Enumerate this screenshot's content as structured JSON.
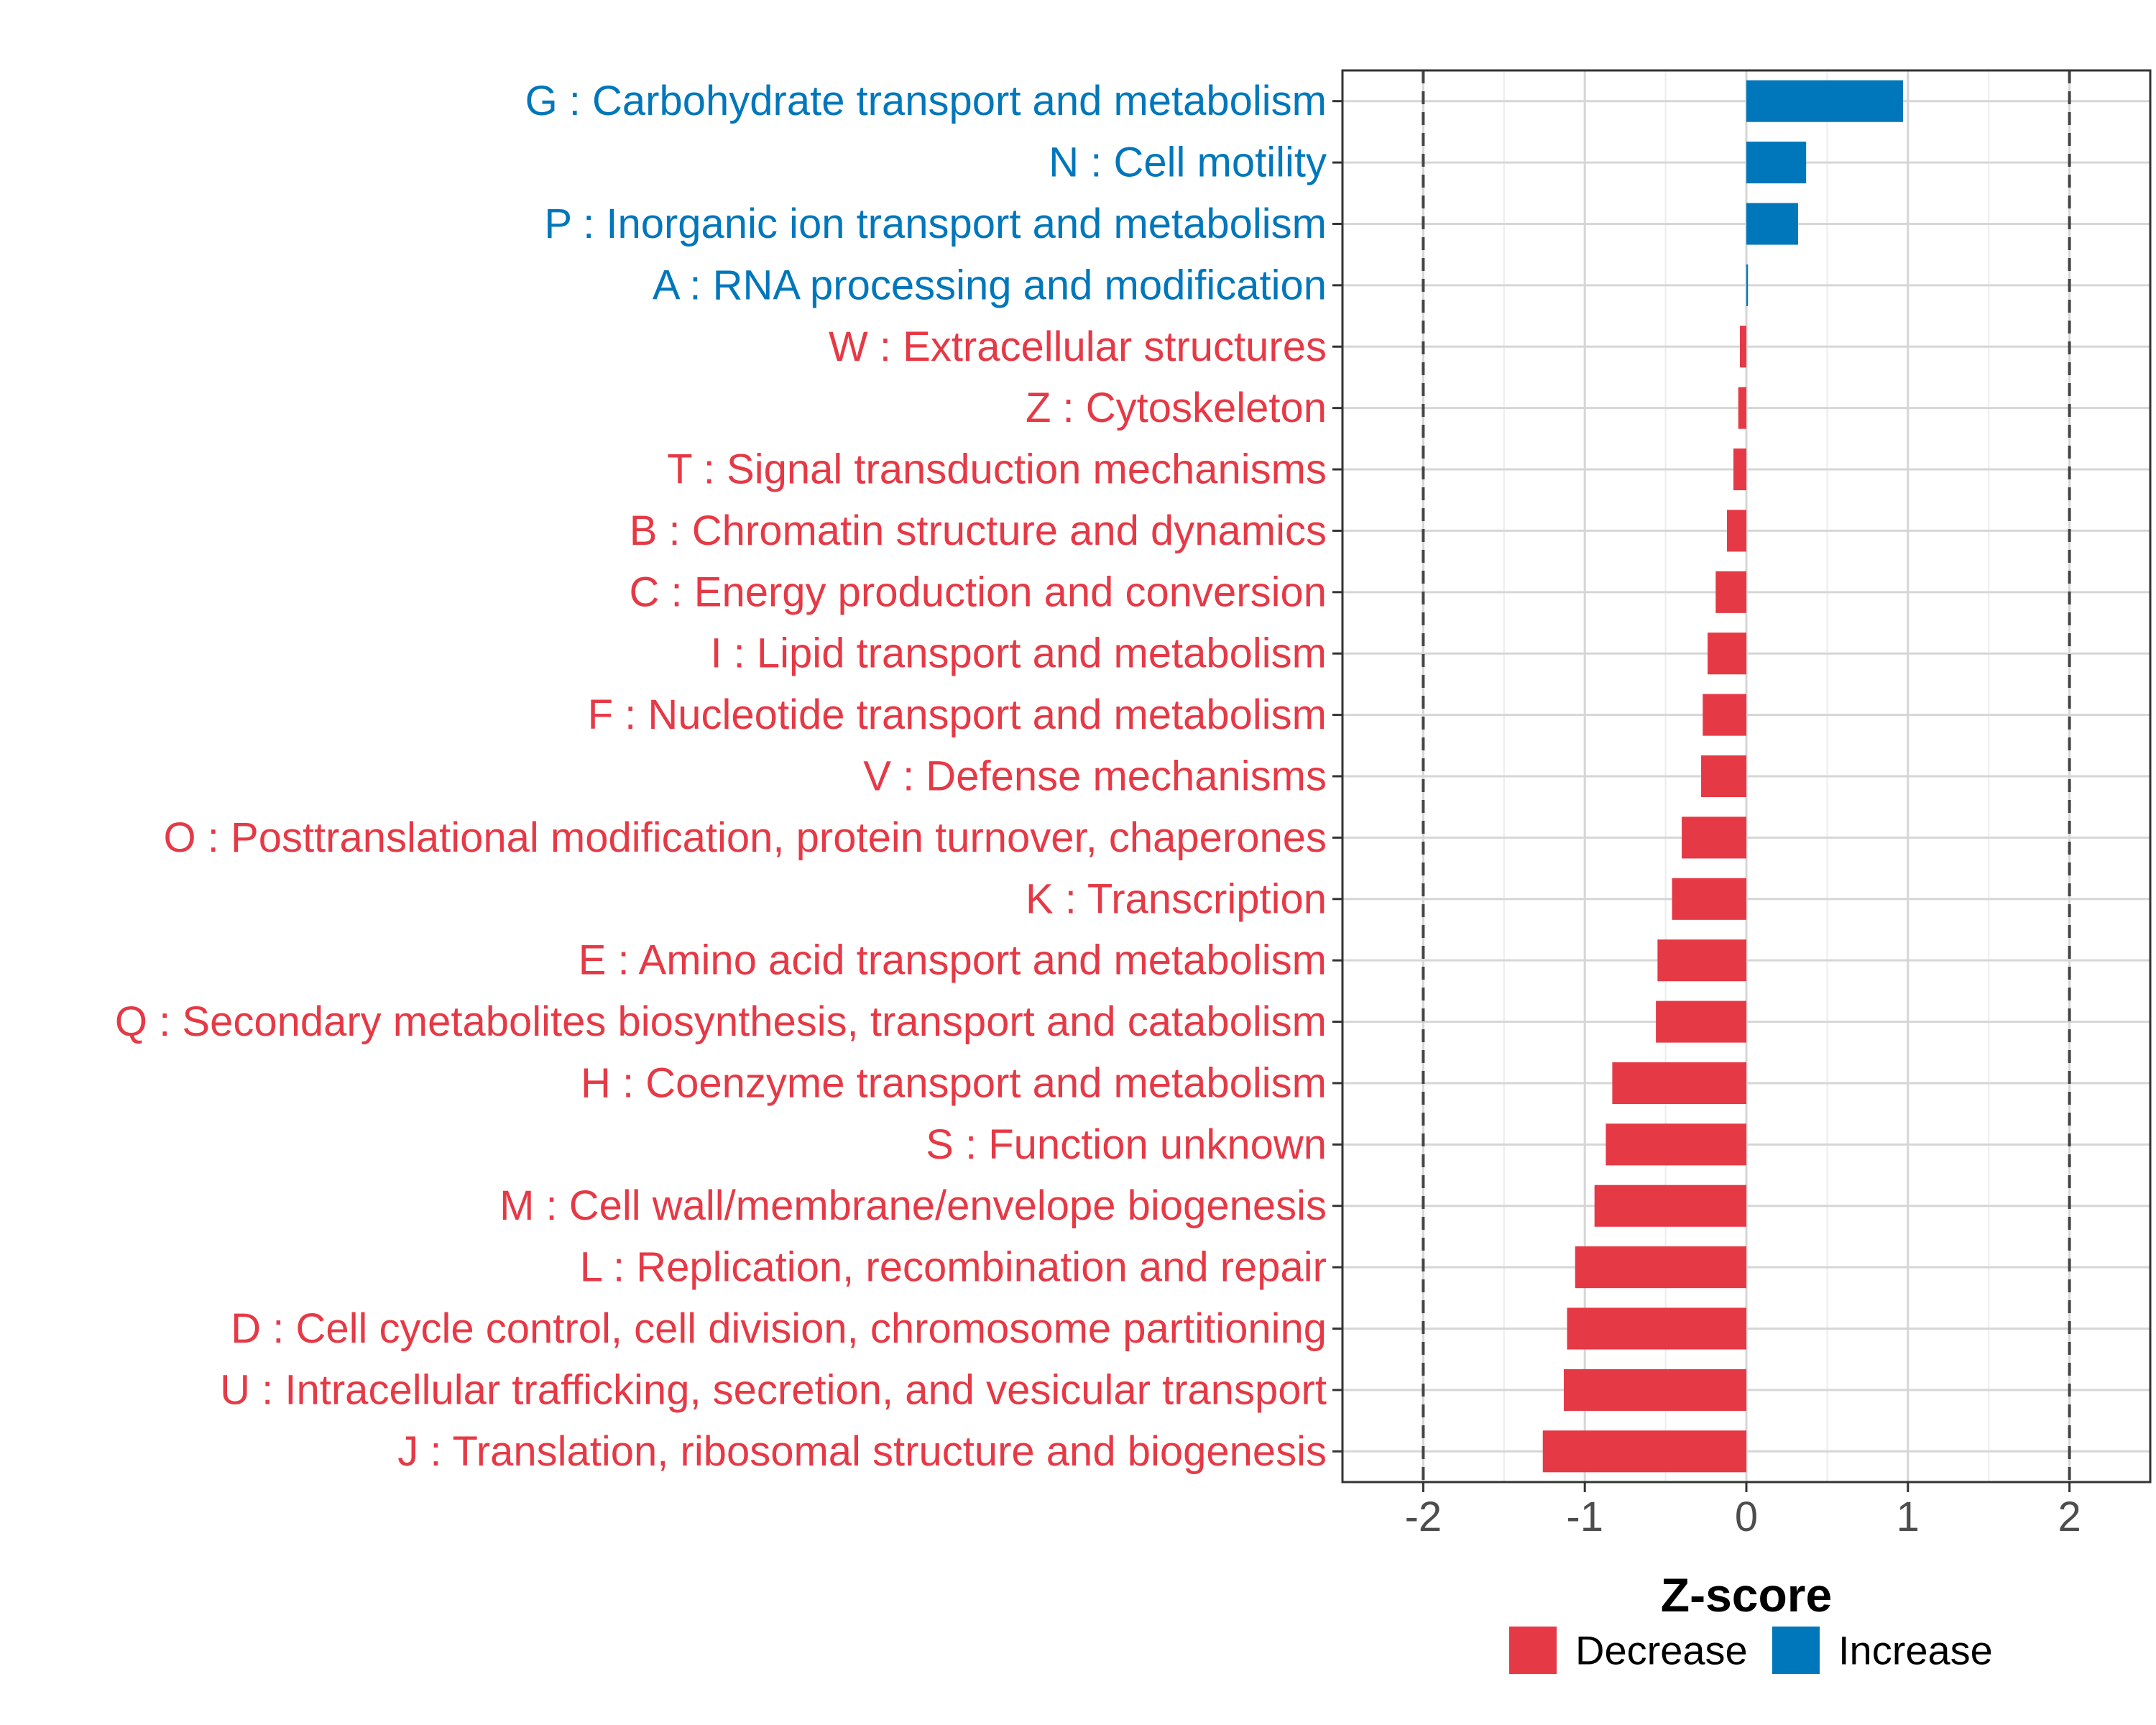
{
  "chart_data": {
    "type": "bar",
    "orientation": "horizontal",
    "title": "",
    "xlabel": "Z-score",
    "ylabel": "",
    "xlim": [
      -2.5,
      2.5
    ],
    "xticks": [
      -2,
      -1,
      0,
      1,
      2
    ],
    "xtick_labels": [
      "-2",
      "-1",
      "0",
      "1",
      "2"
    ],
    "reference_lines": [
      -2,
      2
    ],
    "grid": true,
    "legend_position": "bottom",
    "colors": {
      "Decrease": "#E63946",
      "Increase": "#0077BB"
    },
    "categories": [
      "G : Carbohydrate transport and metabolism",
      "N : Cell motility",
      "P : Inorganic ion transport and metabolism",
      "A : RNA processing and modification",
      "W : Extracellular structures",
      "Z : Cytoskeleton",
      "T : Signal transduction mechanisms",
      "B : Chromatin structure and dynamics",
      "C : Energy production and conversion",
      "I : Lipid transport and metabolism",
      "F : Nucleotide transport and metabolism",
      "V : Defense mechanisms",
      "O : Posttranslational modification, protein turnover, chaperones",
      "K : Transcription",
      "E : Amino acid transport and metabolism",
      "Q : Secondary metabolites biosynthesis, transport and catabolism",
      "H : Coenzyme transport and metabolism",
      "S : Function unknown",
      "M : Cell wall/membrane/envelope biogenesis",
      "L : Replication, recombination and repair",
      "D : Cell cycle control, cell division, chromosome partitioning",
      "U : Intracellular trafficking, secretion, and vesicular transport",
      "J : Translation, ribosomal structure and biogenesis"
    ],
    "values": [
      0.97,
      0.37,
      0.32,
      0.01,
      -0.04,
      -0.05,
      -0.08,
      -0.12,
      -0.19,
      -0.24,
      -0.27,
      -0.28,
      -0.4,
      -0.46,
      -0.55,
      -0.56,
      -0.83,
      -0.87,
      -0.94,
      -1.06,
      -1.11,
      -1.13,
      -1.26
    ],
    "groups": [
      "Increase",
      "Increase",
      "Increase",
      "Increase",
      "Decrease",
      "Decrease",
      "Decrease",
      "Decrease",
      "Decrease",
      "Decrease",
      "Decrease",
      "Decrease",
      "Decrease",
      "Decrease",
      "Decrease",
      "Decrease",
      "Decrease",
      "Decrease",
      "Decrease",
      "Decrease",
      "Decrease",
      "Decrease",
      "Decrease"
    ],
    "legend": [
      "Decrease",
      "Increase"
    ]
  }
}
